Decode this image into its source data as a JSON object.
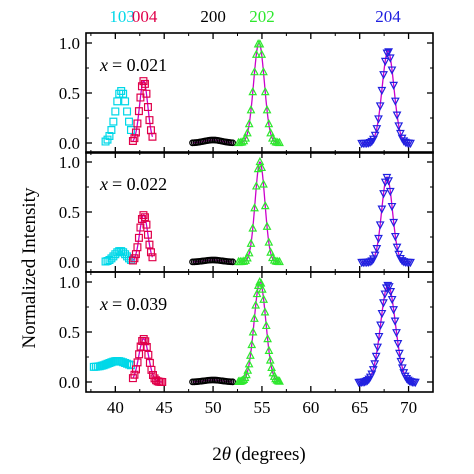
{
  "chart_data": {
    "type": "scatter",
    "xlabel_prefix": "2",
    "xlabel_symbol": "θ",
    "xlabel_unit": "(degrees)",
    "ylabel": "Normalized Intensity",
    "xlim": [
      37,
      72.5
    ],
    "ylim": [
      -0.1,
      1.1
    ],
    "x_ticks": [
      "40",
      "45",
      "50",
      "55",
      "60",
      "65",
      "70"
    ],
    "x_tick_values": [
      40,
      45,
      50,
      55,
      60,
      65,
      70
    ],
    "y_ticks": [
      "0.0",
      "0.5",
      "1.0"
    ],
    "y_tick_values": [
      0,
      0.5,
      1.0
    ],
    "grid": false,
    "reflections": [
      {
        "label": "103",
        "color": "#00d8e8",
        "marker": "square",
        "x": 40.7
      },
      {
        "label": "004",
        "color": "#e0004a",
        "marker": "square",
        "x": 43.0
      },
      {
        "label": "200",
        "color": "#000000",
        "marker": "circle",
        "x": 50.0
      },
      {
        "label": "202",
        "color": "#2ee82e",
        "marker": "triangle-up",
        "x": 55.0
      },
      {
        "label": "204",
        "color": "#2020e0",
        "marker": "triangle-down",
        "x": 67.9
      }
    ],
    "fit_color": "#cc00cc",
    "panels": [
      {
        "label_var": "x",
        "label_value": "= 0.021",
        "peaks": [
          {
            "reflection": "103",
            "center": 40.6,
            "amplitude": 0.52,
            "sigma": 0.6,
            "xmin": 39.0,
            "xmax": 41.6,
            "n": 14,
            "baseline": 0.0,
            "fit": false
          },
          {
            "reflection": "004",
            "center": 42.9,
            "amplitude": 0.62,
            "sigma": 0.42,
            "xmin": 41.8,
            "xmax": 43.8,
            "n": 14,
            "baseline": 0.0,
            "fit": true
          },
          {
            "reflection": "200",
            "center": 50.0,
            "amplitude": 0.03,
            "sigma": 0.9,
            "xmin": 47.9,
            "xmax": 52.0,
            "n": 24,
            "baseline": 0.0,
            "fit": true
          },
          {
            "reflection": "202",
            "center": 54.7,
            "amplitude": 1.0,
            "sigma": 0.55,
            "xmin": 52.6,
            "xmax": 56.8,
            "n": 24,
            "baseline": 0.0,
            "fit": true
          },
          {
            "reflection": "204",
            "center": 67.9,
            "amplitude": 0.92,
            "sigma": 0.6,
            "xmin": 65.2,
            "xmax": 70.2,
            "n": 30,
            "baseline": 0.0,
            "fit": true
          }
        ]
      },
      {
        "label_var": "x",
        "label_value": "= 0.022",
        "peaks": [
          {
            "reflection": "103",
            "center": 40.5,
            "amplitude": 0.11,
            "sigma": 0.6,
            "xmin": 39.0,
            "xmax": 41.6,
            "n": 14,
            "baseline": 0.0,
            "fit": false
          },
          {
            "reflection": "004",
            "center": 42.9,
            "amplitude": 0.47,
            "sigma": 0.42,
            "xmin": 41.8,
            "xmax": 43.8,
            "n": 14,
            "baseline": 0.0,
            "fit": true
          },
          {
            "reflection": "200",
            "center": 50.0,
            "amplitude": 0.02,
            "sigma": 0.9,
            "xmin": 47.9,
            "xmax": 52.0,
            "n": 24,
            "baseline": 0.0,
            "fit": true
          },
          {
            "reflection": "202",
            "center": 54.8,
            "amplitude": 1.0,
            "sigma": 0.5,
            "xmin": 52.6,
            "xmax": 56.8,
            "n": 24,
            "baseline": 0.0,
            "fit": true
          },
          {
            "reflection": "204",
            "center": 67.8,
            "amplitude": 0.85,
            "sigma": 0.55,
            "xmin": 65.2,
            "xmax": 70.2,
            "n": 30,
            "baseline": 0.0,
            "fit": true
          }
        ]
      },
      {
        "label_var": "x",
        "label_value": "= 0.039",
        "peaks": [
          {
            "reflection": "103",
            "center": 40.2,
            "amplitude": 0.06,
            "sigma": 0.9,
            "xmin": 37.8,
            "xmax": 41.6,
            "n": 20,
            "baseline": 0.15,
            "fit": false
          },
          {
            "reflection": "004",
            "center": 42.9,
            "amplitude": 0.43,
            "sigma": 0.5,
            "xmin": 41.8,
            "xmax": 44.8,
            "n": 20,
            "baseline": 0.0,
            "fit": true
          },
          {
            "reflection": "200",
            "center": 50.0,
            "amplitude": 0.02,
            "sigma": 0.9,
            "xmin": 47.9,
            "xmax": 52.0,
            "n": 24,
            "baseline": 0.0,
            "fit": true
          },
          {
            "reflection": "202",
            "center": 54.8,
            "amplitude": 1.0,
            "sigma": 0.6,
            "xmin": 52.6,
            "xmax": 56.8,
            "n": 32,
            "baseline": 0.0,
            "fit": true
          },
          {
            "reflection": "204",
            "center": 67.9,
            "amplitude": 0.97,
            "sigma": 0.75,
            "xmin": 64.9,
            "xmax": 70.7,
            "n": 40,
            "baseline": 0.0,
            "fit": true
          }
        ]
      }
    ]
  }
}
